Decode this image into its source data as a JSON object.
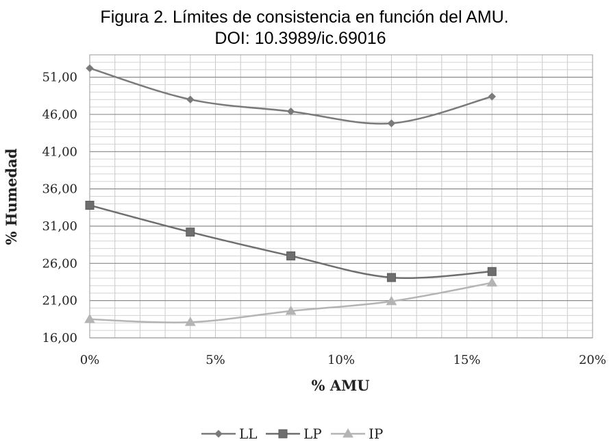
{
  "title": {
    "line1": "Figura 2. Límites de consistencia en función del AMU.",
    "line2": "DOI: 10.3989/ic.69016"
  },
  "chart_data": {
    "type": "line",
    "xlabel": "% AMU",
    "ylabel": "% Humedad",
    "xlim": [
      0,
      20
    ],
    "ylim": [
      16,
      54
    ],
    "x_ticks": [
      0,
      5,
      10,
      15,
      20
    ],
    "x_tick_labels": [
      "0%",
      "5%",
      "10%",
      "15%",
      "20%"
    ],
    "y_ticks": [
      16,
      21,
      26,
      31,
      36,
      41,
      46,
      51
    ],
    "y_tick_labels": [
      "16,00",
      "21,00",
      "26,00",
      "31,00",
      "36,00",
      "41,00",
      "46,00",
      "51,00"
    ],
    "grid": true,
    "legend_position": "bottom",
    "series": [
      {
        "name": "LL",
        "marker": "diamond",
        "color": "#7a7a7a",
        "x": [
          0,
          4,
          8,
          12,
          16
        ],
        "y": [
          52.2,
          48.0,
          46.4,
          44.8,
          48.4
        ]
      },
      {
        "name": "LP",
        "marker": "square",
        "color": "#6e6e6e",
        "x": [
          0,
          4,
          8,
          12,
          16
        ],
        "y": [
          33.8,
          30.2,
          27.0,
          24.1,
          24.9
        ]
      },
      {
        "name": "IP",
        "marker": "triangle",
        "color": "#b4b4b4",
        "x": [
          0,
          4,
          8,
          12,
          16
        ],
        "y": [
          18.5,
          18.1,
          19.6,
          20.9,
          23.4
        ]
      }
    ]
  }
}
